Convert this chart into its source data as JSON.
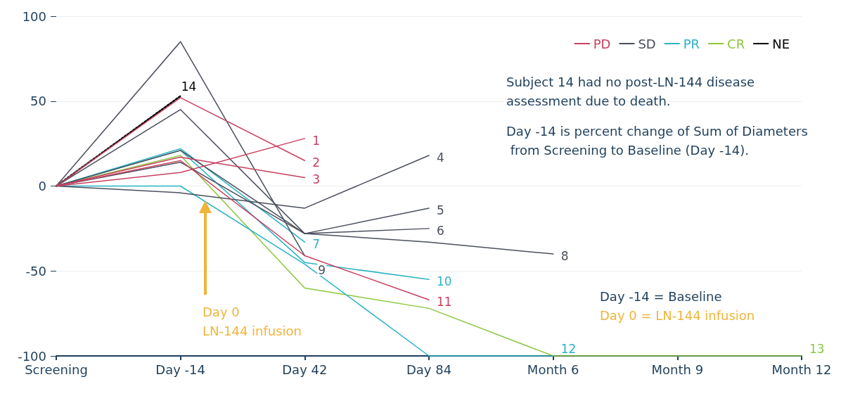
{
  "chart_data": {
    "type": "line",
    "categories": [
      "Screening",
      "Day -14",
      "Day 42",
      "Day 84",
      "Month 6",
      "Month 9",
      "Month 12"
    ],
    "ylim": [
      -100,
      100
    ],
    "yticks": [
      -100,
      -50,
      0,
      50,
      100
    ],
    "grid": "y",
    "legend": "top right",
    "marker": "none",
    "series": [
      {
        "name": "PD",
        "color": "#c8405f",
        "values": [
          null,
          null,
          null,
          null,
          null,
          null,
          null
        ]
      },
      {
        "name": "SD",
        "color": "#4a4f5c",
        "values": [
          null,
          null,
          null,
          null,
          null,
          null,
          null
        ]
      },
      {
        "name": "PR",
        "color": "#2ab3c4",
        "values": [
          null,
          null,
          null,
          null,
          null,
          null,
          null
        ]
      },
      {
        "name": "CR",
        "color": "#8cc63f",
        "values": [
          null,
          null,
          null,
          null,
          null,
          null,
          null
        ]
      },
      {
        "name": "NE",
        "color": "#000000",
        "line_style": "dotted",
        "values": [
          null,
          null,
          null,
          null,
          null,
          null,
          null
        ]
      },
      {
        "name": "1",
        "color": "#c8405f",
        "values": [
          0,
          8,
          28,
          null,
          null,
          null,
          null
        ]
      },
      {
        "name": "2",
        "color": "#c8405f",
        "values": [
          0,
          52,
          15,
          null,
          null,
          null,
          null
        ]
      },
      {
        "name": "3",
        "color": "#c8405f",
        "values": [
          0,
          17,
          5,
          null,
          null,
          null,
          null
        ]
      },
      {
        "name": "11",
        "color": "#c8405f",
        "values": [
          0,
          15,
          -41,
          -67,
          null,
          null,
          null
        ]
      },
      {
        "name": "4",
        "color": "#4a4f5c",
        "values": [
          0,
          -4,
          -13,
          18,
          null,
          null,
          null
        ]
      },
      {
        "name": "5",
        "color": "#4a4f5c",
        "values": [
          0,
          45,
          -28,
          -13,
          null,
          null,
          null
        ]
      },
      {
        "name": "6",
        "color": "#4a4f5c",
        "values": [
          0,
          21,
          -28,
          -25,
          null,
          null,
          null
        ]
      },
      {
        "name": "8",
        "color": "#4a4f5c",
        "values": [
          0,
          14,
          -28,
          -33,
          -40,
          null,
          null
        ]
      },
      {
        "name": "9",
        "color": "#4a4f5c",
        "values": [
          0,
          85,
          -41,
          null,
          null,
          null,
          null
        ]
      },
      {
        "name": "7",
        "color": "#2ab3c4",
        "values": [
          0,
          22,
          -33,
          null,
          null,
          null,
          null
        ]
      },
      {
        "name": "10",
        "color": "#2ab3c4",
        "values": [
          0,
          21,
          -45,
          -55,
          null,
          null,
          null
        ]
      },
      {
        "name": "12",
        "color": "#2ab3c4",
        "values": [
          0,
          0,
          -46,
          -100,
          -100,
          null,
          null
        ]
      },
      {
        "name": "13",
        "color": "#8cc63f",
        "values": [
          0,
          18,
          -60,
          -72,
          -100,
          -100,
          -100
        ]
      },
      {
        "name": "14",
        "color": "#000000",
        "line_style": "dotted",
        "values": [
          0,
          53,
          null,
          null,
          null,
          null,
          null
        ]
      }
    ],
    "annotations": [
      "Subject 14 had no post-LN-144 disease assessment due to death.",
      "Day -14 is percent change of Sum of Diameters from Screening to Baseline (Day -14).",
      "Day -14 = Baseline",
      "Day 0 = LN-144 infusion",
      "Day 0",
      "LN-144 infusion"
    ]
  }
}
